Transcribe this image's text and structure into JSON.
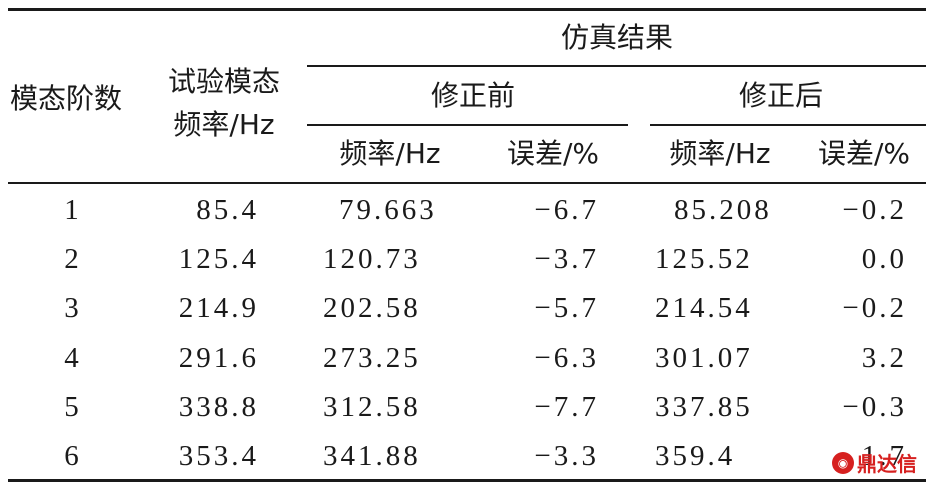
{
  "header": {
    "mode_order": "模态阶数",
    "test_freq_line1": "试验模态",
    "test_freq_line2": "频率/Hz",
    "sim_results": "仿真结果",
    "before": "修正前",
    "after": "修正后",
    "before_freq": "频率/Hz",
    "before_err": "误差/%",
    "after_freq": "频率/Hz",
    "after_err": "误差/%"
  },
  "rows": [
    {
      "order": "1",
      "test": "85.4",
      "before_freq": "79.663",
      "before_err": "−6.7",
      "after_freq": "85.208",
      "after_err": "−0.2"
    },
    {
      "order": "2",
      "test": "125.4",
      "before_freq": "120.73",
      "before_err": "−3.7",
      "after_freq": "125.52",
      "after_err": "0.0"
    },
    {
      "order": "3",
      "test": "214.9",
      "before_freq": "202.58",
      "before_err": "−5.7",
      "after_freq": "214.54",
      "after_err": "−0.2"
    },
    {
      "order": "4",
      "test": "291.6",
      "before_freq": "273.25",
      "before_err": "−6.3",
      "after_freq": "301.07",
      "after_err": "3.2"
    },
    {
      "order": "5",
      "test": "338.8",
      "before_freq": "312.58",
      "before_err": "−7.7",
      "after_freq": "337.85",
      "after_err": "−0.3"
    },
    {
      "order": "6",
      "test": "353.4",
      "before_freq": "341.88",
      "before_err": "−3.3",
      "after_freq": "359.4",
      "after_err": "1.7"
    }
  ],
  "watermark": {
    "icon": "dingdaxin-logo-icon",
    "text": "鼎达信"
  }
}
